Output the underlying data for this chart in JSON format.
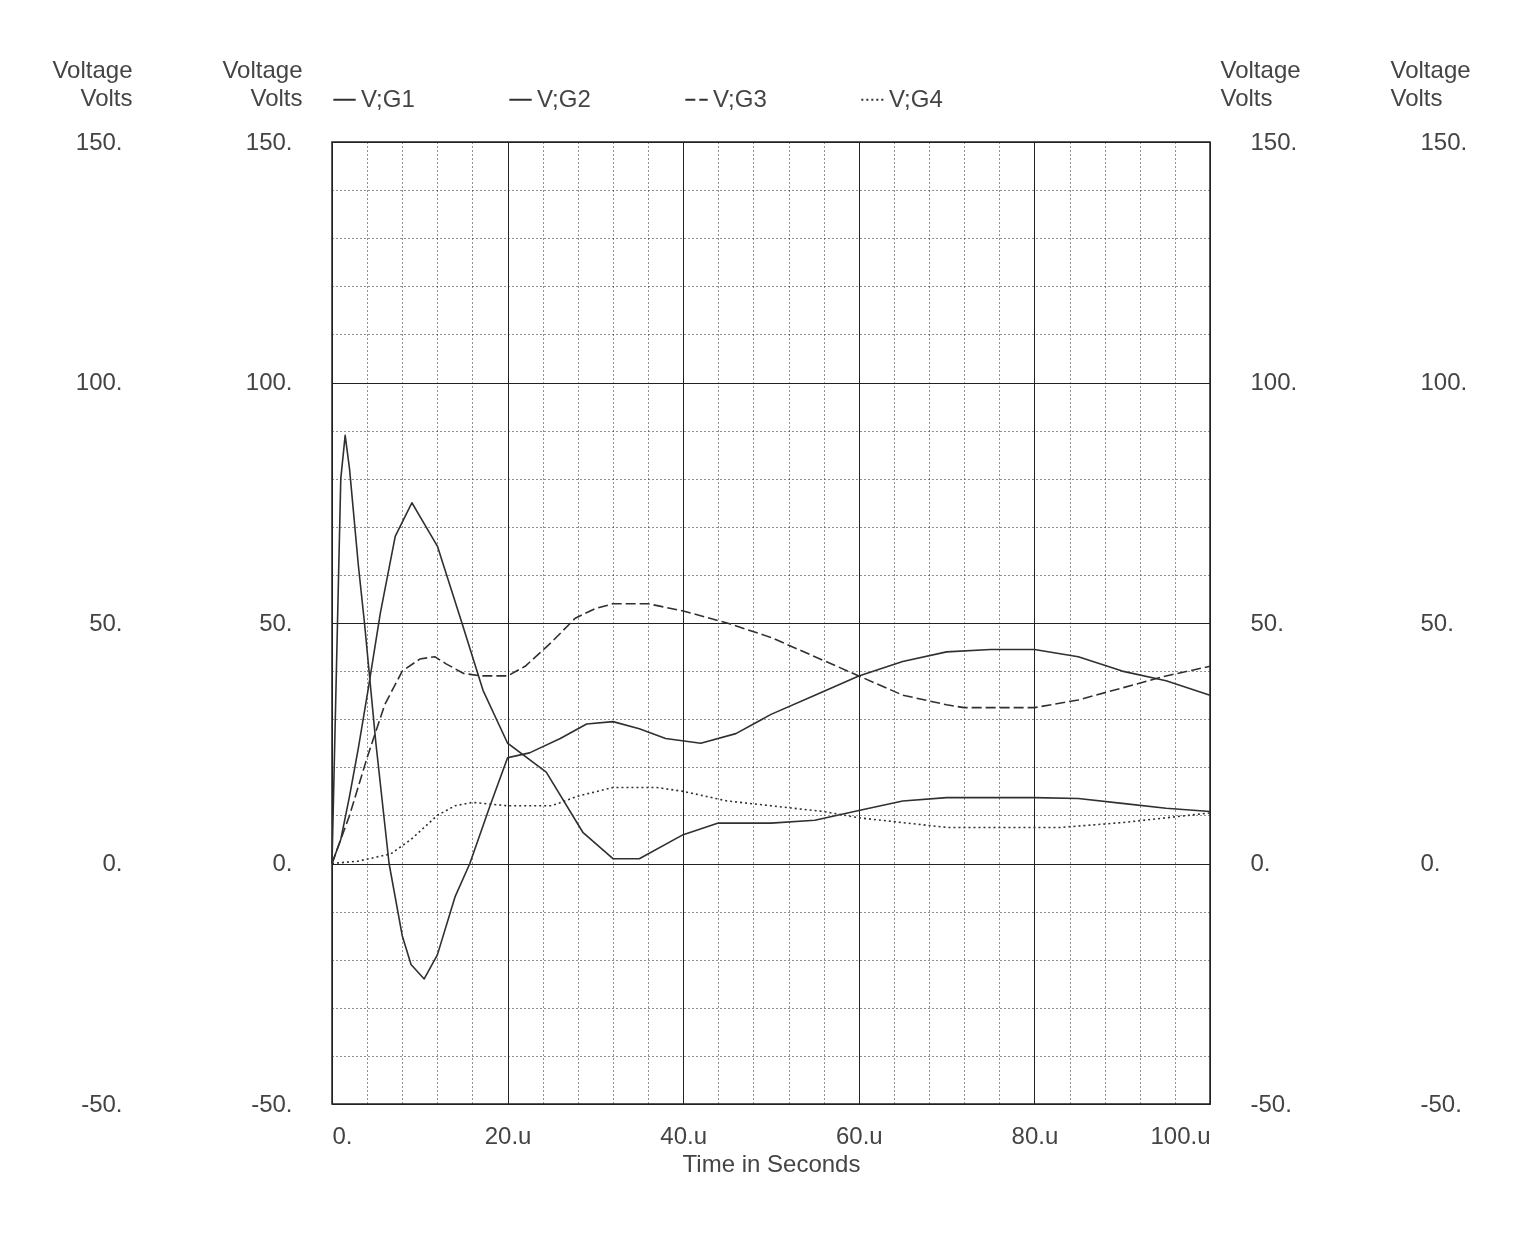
{
  "chart_data": {
    "type": "line",
    "xlabel": "Time in Seconds",
    "ylabel": "Voltage Volts",
    "y2label": "Voltage Volts",
    "xlim": [
      0,
      100
    ],
    "xticks": [
      {
        "value": 0,
        "label": "0."
      },
      {
        "value": 4,
        "label": null
      },
      {
        "value": 8,
        "label": null
      },
      {
        "value": 12,
        "label": null
      },
      {
        "value": 16,
        "label": null
      },
      {
        "value": 20,
        "label": "20.u"
      },
      {
        "value": 24,
        "label": null
      },
      {
        "value": 28,
        "label": null
      },
      {
        "value": 32,
        "label": null
      },
      {
        "value": 36,
        "label": null
      },
      {
        "value": 40,
        "label": "40.u"
      },
      {
        "value": 44,
        "label": null
      },
      {
        "value": 48,
        "label": null
      },
      {
        "value": 52,
        "label": null
      },
      {
        "value": 56,
        "label": null
      },
      {
        "value": 60,
        "label": "60.u"
      },
      {
        "value": 64,
        "label": null
      },
      {
        "value": 68,
        "label": null
      },
      {
        "value": 72,
        "label": null
      },
      {
        "value": 76,
        "label": null
      },
      {
        "value": 80,
        "label": "80.u"
      },
      {
        "value": 84,
        "label": null
      },
      {
        "value": 88,
        "label": null
      },
      {
        "value": 92,
        "label": null
      },
      {
        "value": 96,
        "label": null
      },
      {
        "value": 100,
        "label": "100.u"
      }
    ],
    "ylim": [
      -50,
      150
    ],
    "yticks": [
      {
        "value": -50,
        "label": "-50."
      },
      {
        "value": -40,
        "label": null
      },
      {
        "value": -30,
        "label": null
      },
      {
        "value": -20,
        "label": null
      },
      {
        "value": -10,
        "label": null
      },
      {
        "value": 0,
        "label": "0."
      },
      {
        "value": 10,
        "label": null
      },
      {
        "value": 20,
        "label": null
      },
      {
        "value": 30,
        "label": null
      },
      {
        "value": 40,
        "label": null
      },
      {
        "value": 50,
        "label": "50."
      },
      {
        "value": 60,
        "label": null
      },
      {
        "value": 70,
        "label": null
      },
      {
        "value": 80,
        "label": null
      },
      {
        "value": 90,
        "label": null
      },
      {
        "value": 100,
        "label": "100."
      },
      {
        "value": 110,
        "label": null
      },
      {
        "value": 120,
        "label": null
      },
      {
        "value": 130,
        "label": null
      },
      {
        "value": 140,
        "label": null
      },
      {
        "value": 150,
        "label": "150."
      }
    ],
    "y2lim": [
      -50,
      150
    ],
    "y2ticks": [
      {
        "value": -50,
        "label": "-50."
      },
      {
        "value": 0,
        "label": "0."
      },
      {
        "value": 50,
        "label": "50."
      },
      {
        "value": 100,
        "label": "100."
      },
      {
        "value": 150,
        "label": "150."
      }
    ],
    "grid": true,
    "legend": "top",
    "marker": "none",
    "series": [
      {
        "name": "V;G1",
        "color": "#303030",
        "line_style": "solid",
        "x": [
          0,
          0.5,
          1,
          1.5,
          2,
          3,
          3.7,
          5,
          6.5,
          8,
          9,
          10.5,
          12,
          14,
          15.7,
          18,
          20,
          22.5,
          26,
          29,
          32,
          35,
          38,
          42,
          46,
          50,
          55,
          60,
          65,
          70,
          75,
          80,
          85,
          90,
          95,
          100
        ],
        "values": [
          0,
          40,
          80,
          89,
          82,
          62,
          50,
          25,
          0,
          -15,
          -21,
          -24,
          -19,
          -7,
          0,
          12,
          22,
          23,
          26,
          29,
          29.5,
          28,
          26,
          25,
          27,
          31,
          35,
          39,
          42,
          44,
          44.5,
          44.5,
          43,
          40,
          38,
          35
        ]
      },
      {
        "name": "V;G2",
        "color": "#303030",
        "line_style": "solid",
        "x": [
          0,
          1,
          2,
          3,
          4.1,
          5.5,
          7.2,
          9.1,
          12,
          14.8,
          17.2,
          20,
          24.4,
          28.6,
          32,
          35,
          40,
          44,
          50,
          55,
          60,
          65,
          70,
          80,
          85,
          90,
          95,
          100
        ],
        "values": [
          0,
          5,
          14,
          24,
          36,
          52,
          68,
          75,
          66,
          50,
          36,
          25,
          19,
          6.4,
          1,
          1,
          6,
          8.4,
          8.4,
          9,
          11,
          13,
          13.7,
          13.7,
          13.5,
          12.5,
          11.5,
          10.8
        ]
      },
      {
        "name": "V;G3",
        "color": "#303030",
        "line_style": "dashed",
        "x": [
          0,
          2,
          4,
          6,
          8,
          10,
          11.7,
          13,
          15,
          17,
          20,
          22,
          25,
          27.7,
          30,
          32,
          36,
          40,
          45,
          50,
          55,
          60,
          65,
          70,
          72,
          80,
          85,
          90,
          95,
          100
        ],
        "values": [
          0,
          10,
          22,
          33,
          40,
          42.5,
          43,
          41.5,
          39.5,
          39,
          39,
          41,
          46,
          51,
          53,
          54,
          54,
          52.5,
          50,
          47,
          43,
          39,
          35,
          33,
          32.4,
          32.4,
          34,
          36.5,
          39,
          41
        ]
      },
      {
        "name": "V;G4",
        "color": "#303030",
        "line_style": "dotted",
        "x": [
          0,
          3,
          6.7,
          9,
          12,
          14,
          16,
          20,
          25,
          28,
          32,
          37,
          40,
          45,
          50,
          56,
          60,
          65,
          70,
          83,
          90,
          95,
          100
        ],
        "values": [
          0,
          0.5,
          2,
          5,
          10,
          12,
          12.7,
          12,
          12,
          14,
          15.8,
          15.8,
          15,
          13,
          12,
          10.8,
          9.5,
          8.5,
          7.5,
          7.5,
          8.5,
          9.5,
          10.5
        ]
      }
    ]
  }
}
